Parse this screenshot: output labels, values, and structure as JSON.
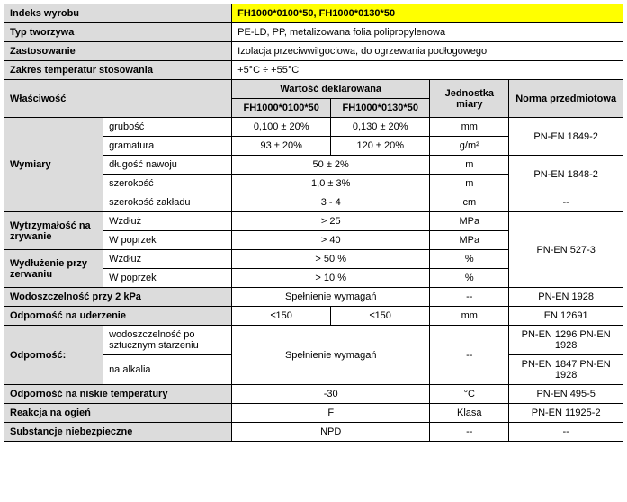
{
  "index_label": "Indeks wyrobu",
  "index_value": "FH1000*0100*50, FH1000*0130*50",
  "material_label": "Typ tworzywa",
  "material_value": "PE-LD, PP, metalizowana folia polipropylenowa",
  "application_label": "Zastosowanie",
  "application_value": "Izolacja przeciwwilgociowa, do ogrzewania podłogowego",
  "temp_range_label": "Zakres temperatur stosowania",
  "temp_range_value": "+5°C ÷ +55°C",
  "prop_label": "Właściwość",
  "declared_label": "Wartość deklarowana",
  "unit_label": "Jednostka miary",
  "norm_label": "Norma przedmiotowa",
  "col_a": "FH1000*0100*50",
  "col_b": "FH1000*0130*50",
  "dim": {
    "group": "Wymiary",
    "thickness": {
      "label": "grubość",
      "a": "0,100 ± 20%",
      "b": "0,130 ± 20%",
      "unit": "mm",
      "norm": "PN-EN 1849-2"
    },
    "gsm": {
      "label": "gramatura",
      "a": "93 ± 20%",
      "b": "120 ± 20%",
      "unit": "g/m²"
    },
    "length": {
      "label": "długość nawoju",
      "val": "50 ± 2%",
      "unit": "m",
      "norm": "PN-EN 1848-2"
    },
    "width": {
      "label": "szerokość",
      "val": "1,0 ± 3%",
      "unit": "m"
    },
    "overlap": {
      "label": "szerokość zakładu",
      "val": "3 - 4",
      "unit": "cm",
      "norm": "--"
    }
  },
  "tear": {
    "group": "Wytrzymałość na zrywanie",
    "along": {
      "label": "Wzdłuż",
      "val": "> 25",
      "unit": "MPa",
      "norm": "PN-EN 527-3"
    },
    "across": {
      "label": "W poprzek",
      "val": "> 40",
      "unit": "MPa"
    }
  },
  "elong": {
    "group": "Wydłużenie przy zerwaniu",
    "along": {
      "label": "Wzdłuż",
      "val": "> 50 %",
      "unit": "%"
    },
    "across": {
      "label": "W poprzek",
      "val": "> 10 %",
      "unit": "%"
    }
  },
  "water": {
    "label": "Wodoszczelność przy 2 kPa",
    "val": "Spełnienie wymagań",
    "unit": "--",
    "norm": "PN-EN 1928"
  },
  "impact": {
    "label": "Odporność na uderzenie",
    "a": "≤150",
    "b": "≤150",
    "unit": "mm",
    "norm": "EN 12691"
  },
  "resist": {
    "group": "Odporność:",
    "aging": {
      "label": "wodoszczelność po sztucznym starzeniu",
      "val": "Spełnienie wymagań",
      "unit": "--",
      "norm": "PN-EN 1296 PN-EN 1928"
    },
    "alkali": {
      "label": "na alkalia",
      "norm": "PN-EN 1847 PN-EN 1928"
    }
  },
  "lowtemp": {
    "label": "Odporność na niskie temperatury",
    "val": "-30",
    "unit": "°C",
    "norm": "PN-EN 495-5"
  },
  "fire": {
    "label": "Reakcja na ogień",
    "val": "F",
    "unit": "Klasa",
    "norm": "PN-EN 11925-2"
  },
  "hazard": {
    "label": "Substancje niebezpieczne",
    "val": "NPD",
    "unit": "--",
    "norm": "--"
  }
}
